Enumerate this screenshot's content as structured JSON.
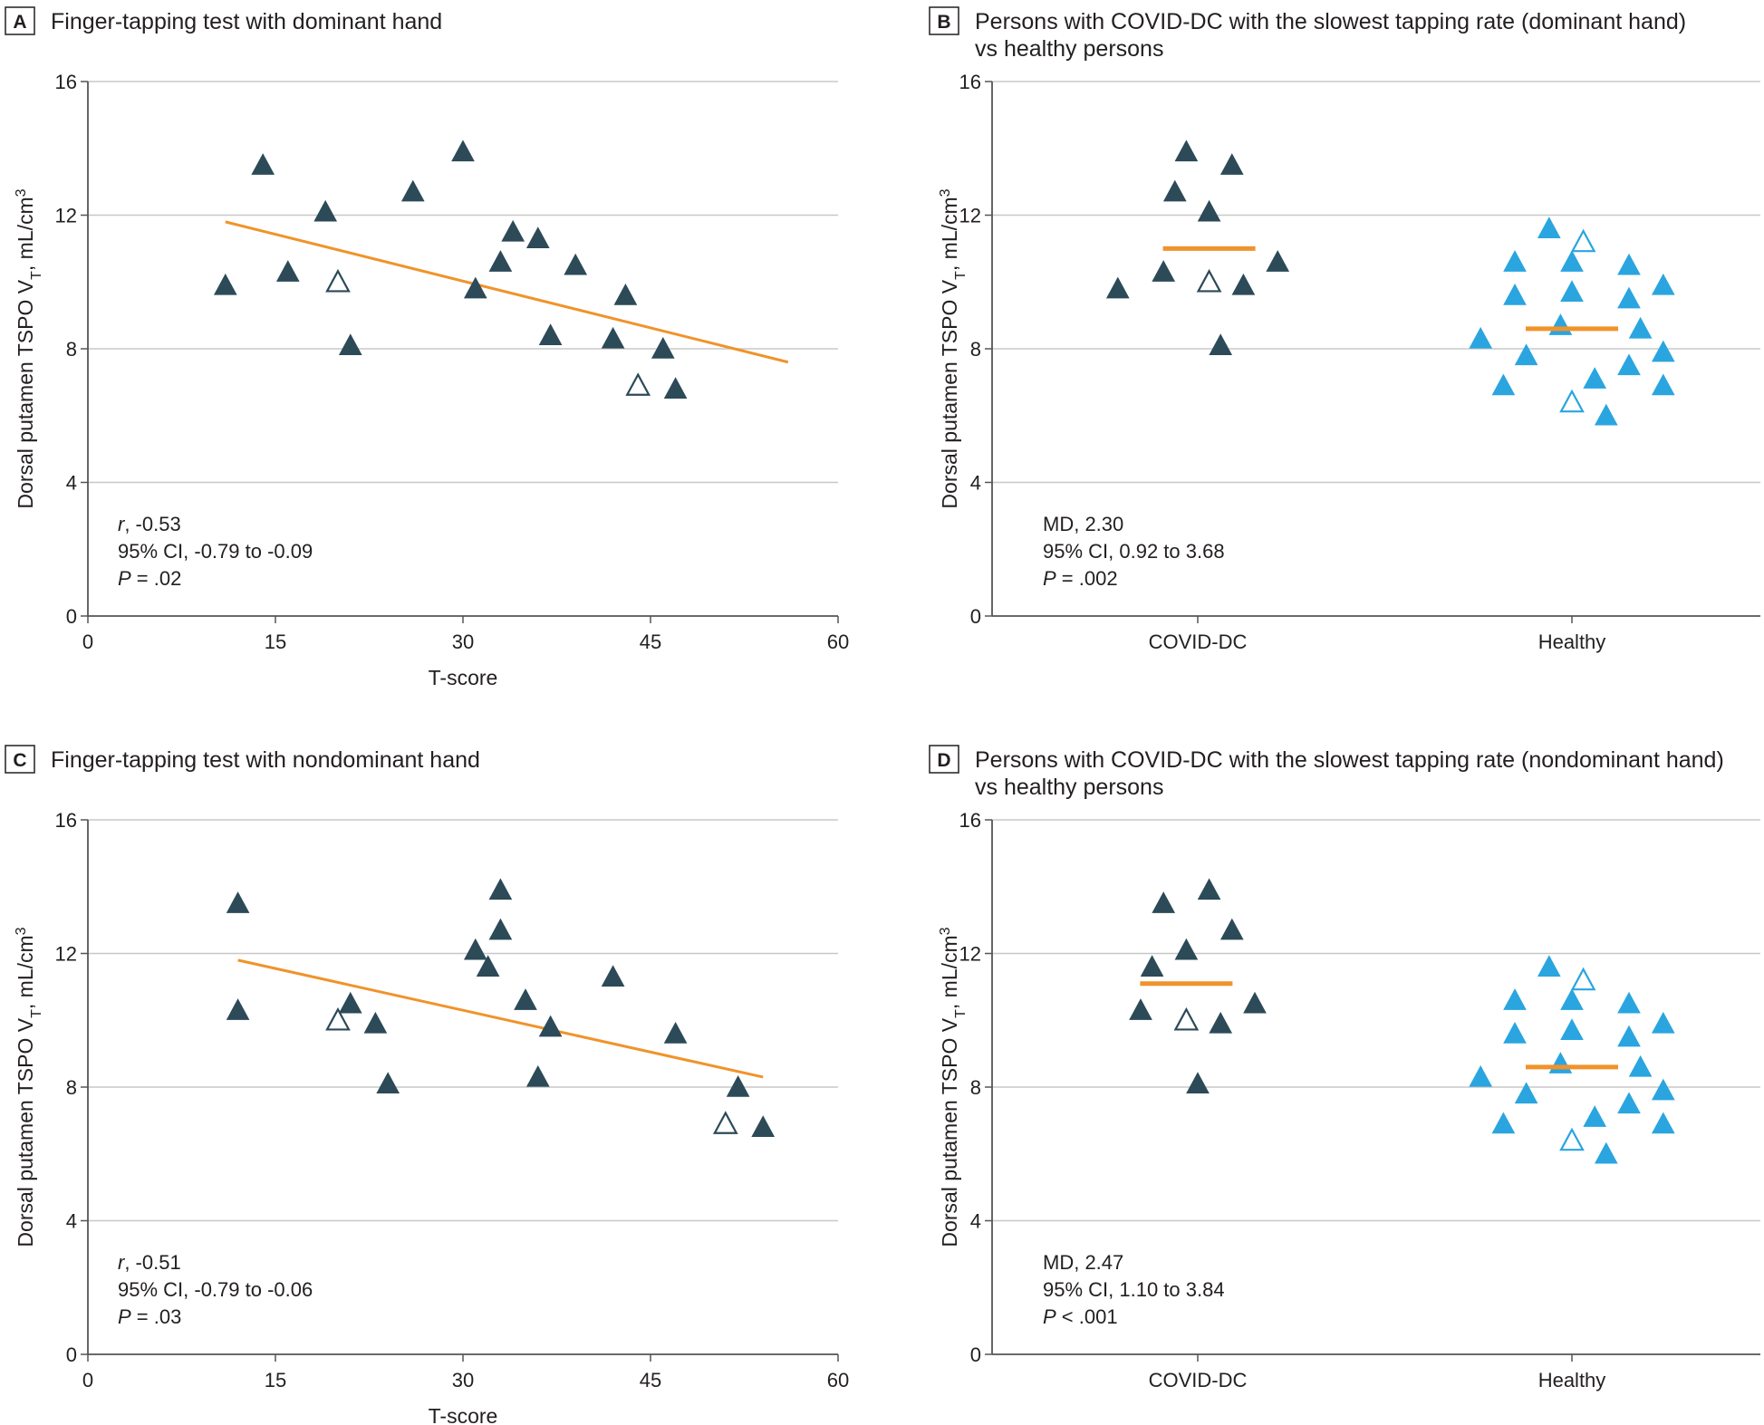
{
  "colors": {
    "dark_marker": "#2c4a57",
    "light_marker": "#2aa5df",
    "fit_line": "#f0932b",
    "gridline": "#c8c8c8",
    "axis": "#555555"
  },
  "chart_data": [
    {
      "id": "A",
      "type": "scatter",
      "letter": "A",
      "title": [
        "Finger-tapping test with dominant hand"
      ],
      "xlabel": "T-score",
      "ylabel": "Dorsal putamen TSPO V_T, mL/cm^3",
      "xlim": [
        0,
        60
      ],
      "ylim": [
        0,
        16
      ],
      "xticks": [
        0,
        15,
        30,
        45,
        60
      ],
      "yticks": [
        0,
        4,
        8,
        12,
        16
      ],
      "grid": "horizontal",
      "series": [
        {
          "marker": "filled-triangle",
          "points": [
            [
              11,
              9.9
            ],
            [
              14,
              13.5
            ],
            [
              16,
              10.3
            ],
            [
              19,
              12.1
            ],
            [
              21,
              8.1
            ],
            [
              26,
              12.7
            ],
            [
              30,
              13.9
            ],
            [
              31,
              9.8
            ],
            [
              33,
              10.6
            ],
            [
              34,
              11.5
            ],
            [
              36,
              11.3
            ],
            [
              37,
              8.4
            ],
            [
              39,
              10.5
            ],
            [
              42,
              8.3
            ],
            [
              43,
              9.6
            ],
            [
              46,
              8.0
            ],
            [
              47,
              6.8
            ]
          ]
        },
        {
          "marker": "open-triangle",
          "points": [
            [
              20,
              10.0
            ],
            [
              44,
              6.9
            ]
          ]
        }
      ],
      "fit_line": [
        [
          11,
          11.8
        ],
        [
          56,
          7.6
        ]
      ],
      "stats": {
        "r_label": "r",
        "r_value": ", -0.53",
        "ci": "95% CI, -0.79 to -0.09",
        "p_label": "P",
        "p_value": " = .02"
      }
    },
    {
      "id": "B",
      "type": "scatter",
      "letter": "B",
      "title": [
        "Persons with COVID-DC with the slowest tapping rate (dominant hand)",
        "vs healthy persons"
      ],
      "xlabel": "",
      "ylabel": "Dorsal putamen TSPO V_T, mL/cm^3",
      "categories": [
        "COVID-DC",
        "Healthy"
      ],
      "ylim": [
        0,
        16
      ],
      "yticks": [
        0,
        4,
        8,
        12,
        16
      ],
      "grid": "horizontal",
      "series": [
        {
          "category": "COVID-DC",
          "marker": "filled-triangle",
          "color": "dark",
          "points": [
            [
              -0.21,
              9.8
            ],
            [
              -0.09,
              10.3
            ],
            [
              -0.06,
              12.7
            ],
            [
              -0.03,
              13.9
            ],
            [
              0.03,
              12.1
            ],
            [
              0.06,
              8.1
            ],
            [
              0.09,
              13.5
            ],
            [
              0.12,
              9.9
            ],
            [
              0.21,
              10.6
            ]
          ]
        },
        {
          "category": "COVID-DC",
          "marker": "open-triangle",
          "color": "dark",
          "points": [
            [
              0.03,
              10.0
            ]
          ]
        },
        {
          "category": "Healthy",
          "marker": "filled-triangle",
          "color": "light",
          "points": [
            [
              -0.24,
              8.3
            ],
            [
              -0.18,
              6.9
            ],
            [
              -0.15,
              10.6
            ],
            [
              -0.15,
              9.6
            ],
            [
              -0.12,
              7.8
            ],
            [
              -0.06,
              11.6
            ],
            [
              -0.03,
              8.7
            ],
            [
              0.0,
              10.6
            ],
            [
              0.0,
              9.7
            ],
            [
              0.06,
              7.1
            ],
            [
              0.09,
              6.0
            ],
            [
              0.15,
              10.5
            ],
            [
              0.15,
              9.5
            ],
            [
              0.15,
              7.5
            ],
            [
              0.18,
              8.6
            ],
            [
              0.24,
              9.9
            ],
            [
              0.24,
              7.9
            ],
            [
              0.24,
              6.9
            ]
          ]
        },
        {
          "category": "Healthy",
          "marker": "open-triangle",
          "color": "light",
          "points": [
            [
              0.03,
              11.2
            ],
            [
              0.0,
              6.4
            ]
          ]
        }
      ],
      "means": [
        {
          "category": "COVID-DC",
          "value": 11.0,
          "offset": 0.03
        },
        {
          "category": "Healthy",
          "value": 8.6,
          "offset": 0.0
        }
      ],
      "stats": {
        "md": "MD, 2.30",
        "ci": "95% CI, 0.92 to 3.68",
        "p_label": "P",
        "p_value": " = .002"
      }
    },
    {
      "id": "C",
      "type": "scatter",
      "letter": "C",
      "title": [
        "Finger-tapping test with nondominant hand"
      ],
      "xlabel": "T-score",
      "ylabel": "Dorsal putamen TSPO V_T, mL/cm^3",
      "xlim": [
        0,
        60
      ],
      "ylim": [
        0,
        16
      ],
      "xticks": [
        0,
        15,
        30,
        45,
        60
      ],
      "yticks": [
        0,
        4,
        8,
        12,
        16
      ],
      "grid": "horizontal",
      "series": [
        {
          "marker": "filled-triangle",
          "points": [
            [
              12,
              13.5
            ],
            [
              12,
              10.3
            ],
            [
              21,
              10.5
            ],
            [
              23,
              9.9
            ],
            [
              24,
              8.1
            ],
            [
              31,
              12.1
            ],
            [
              32,
              11.6
            ],
            [
              33,
              12.7
            ],
            [
              33,
              13.9
            ],
            [
              35,
              10.6
            ],
            [
              36,
              8.3
            ],
            [
              37,
              9.8
            ],
            [
              42,
              11.3
            ],
            [
              47,
              9.6
            ],
            [
              52,
              8.0
            ],
            [
              54,
              6.8
            ]
          ]
        },
        {
          "marker": "open-triangle",
          "points": [
            [
              20,
              10.0
            ],
            [
              51,
              6.9
            ]
          ]
        }
      ],
      "fit_line": [
        [
          12,
          11.8
        ],
        [
          54,
          8.3
        ]
      ],
      "stats": {
        "r_label": "r",
        "r_value": ", -0.51",
        "ci": "95% CI, -0.79 to -0.06",
        "p_label": "P",
        "p_value": " = .03"
      }
    },
    {
      "id": "D",
      "type": "scatter",
      "letter": "D",
      "title": [
        "Persons with COVID-DC with the slowest tapping rate (nondominant hand)",
        "vs healthy persons"
      ],
      "xlabel": "",
      "ylabel": "Dorsal putamen TSPO V_T, mL/cm^3",
      "categories": [
        "COVID-DC",
        "Healthy"
      ],
      "ylim": [
        0,
        16
      ],
      "yticks": [
        0,
        4,
        8,
        12,
        16
      ],
      "grid": "horizontal",
      "series": [
        {
          "category": "COVID-DC",
          "marker": "filled-triangle",
          "color": "dark",
          "points": [
            [
              -0.15,
              10.3
            ],
            [
              -0.12,
              11.6
            ],
            [
              -0.09,
              13.5
            ],
            [
              -0.03,
              12.1
            ],
            [
              0.0,
              8.1
            ],
            [
              0.03,
              13.9
            ],
            [
              0.06,
              9.9
            ],
            [
              0.09,
              12.7
            ],
            [
              0.15,
              10.5
            ]
          ]
        },
        {
          "category": "COVID-DC",
          "marker": "open-triangle",
          "color": "dark",
          "points": [
            [
              -0.03,
              10.0
            ]
          ]
        },
        {
          "category": "Healthy",
          "marker": "filled-triangle",
          "color": "light",
          "points": [
            [
              -0.24,
              8.3
            ],
            [
              -0.18,
              6.9
            ],
            [
              -0.15,
              10.6
            ],
            [
              -0.15,
              9.6
            ],
            [
              -0.12,
              7.8
            ],
            [
              -0.06,
              11.6
            ],
            [
              -0.03,
              8.7
            ],
            [
              0.0,
              10.6
            ],
            [
              0.0,
              9.7
            ],
            [
              0.06,
              7.1
            ],
            [
              0.09,
              6.0
            ],
            [
              0.15,
              10.5
            ],
            [
              0.15,
              9.5
            ],
            [
              0.15,
              7.5
            ],
            [
              0.18,
              8.6
            ],
            [
              0.24,
              9.9
            ],
            [
              0.24,
              7.9
            ],
            [
              0.24,
              6.9
            ]
          ]
        },
        {
          "category": "Healthy",
          "marker": "open-triangle",
          "color": "light",
          "points": [
            [
              0.03,
              11.2
            ],
            [
              0.0,
              6.4
            ]
          ]
        }
      ],
      "means": [
        {
          "category": "COVID-DC",
          "value": 11.1,
          "offset": -0.03
        },
        {
          "category": "Healthy",
          "value": 8.6,
          "offset": 0.0
        }
      ],
      "stats": {
        "md": "MD, 2.47",
        "ci": "95% CI, 1.10 to 3.84",
        "p_label": "P",
        "p_value": " < .001"
      }
    }
  ]
}
